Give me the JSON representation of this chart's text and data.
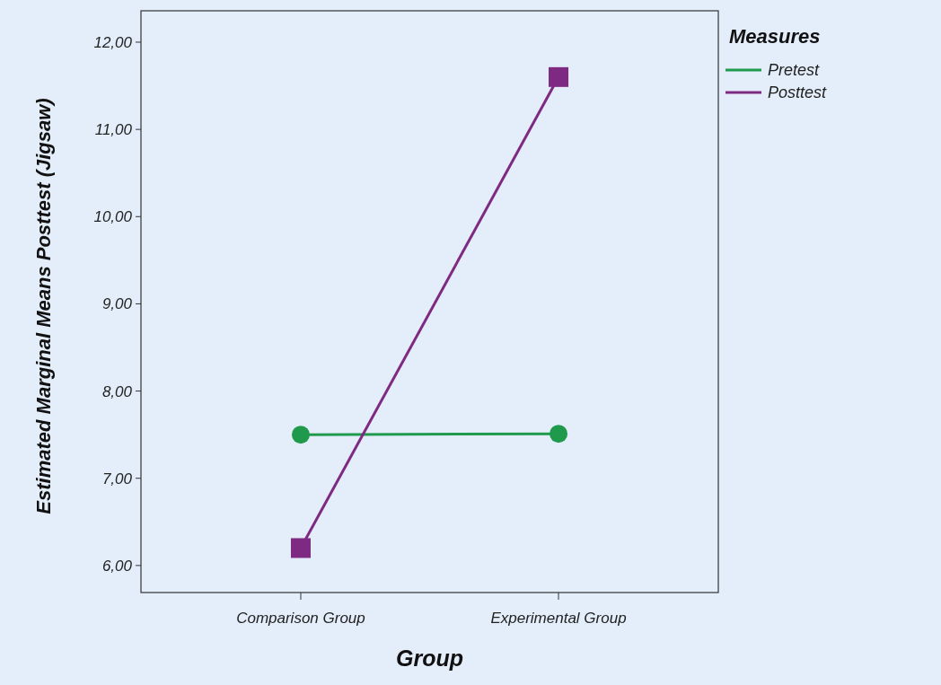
{
  "chart_data": {
    "type": "line",
    "xlabel": "Group",
    "ylabel": "Estimated Marginal Means Posttest (Jigsaw)",
    "legend_title": "Measures",
    "categories": [
      "Comparison Group",
      "Experimental Group"
    ],
    "series": [
      {
        "name": "Pretest",
        "color": "#1f9a4c",
        "values": [
          7.5,
          7.51
        ],
        "marker": "circle"
      },
      {
        "name": "Posttest",
        "color": "#7e2a82",
        "values": [
          6.2,
          11.6
        ],
        "marker": "square"
      }
    ],
    "ylim": [
      5.69,
      12.36
    ],
    "yticks": [
      {
        "value": 6,
        "label": "6,00"
      },
      {
        "value": 7,
        "label": "7,00"
      },
      {
        "value": 8,
        "label": "8,00"
      },
      {
        "value": 9,
        "label": "9,00"
      },
      {
        "value": 10,
        "label": "10,00"
      },
      {
        "value": 11,
        "label": "11,00"
      },
      {
        "value": 12,
        "label": "12,00"
      }
    ],
    "grid": false,
    "legend": "top right",
    "line_style": "solid"
  }
}
